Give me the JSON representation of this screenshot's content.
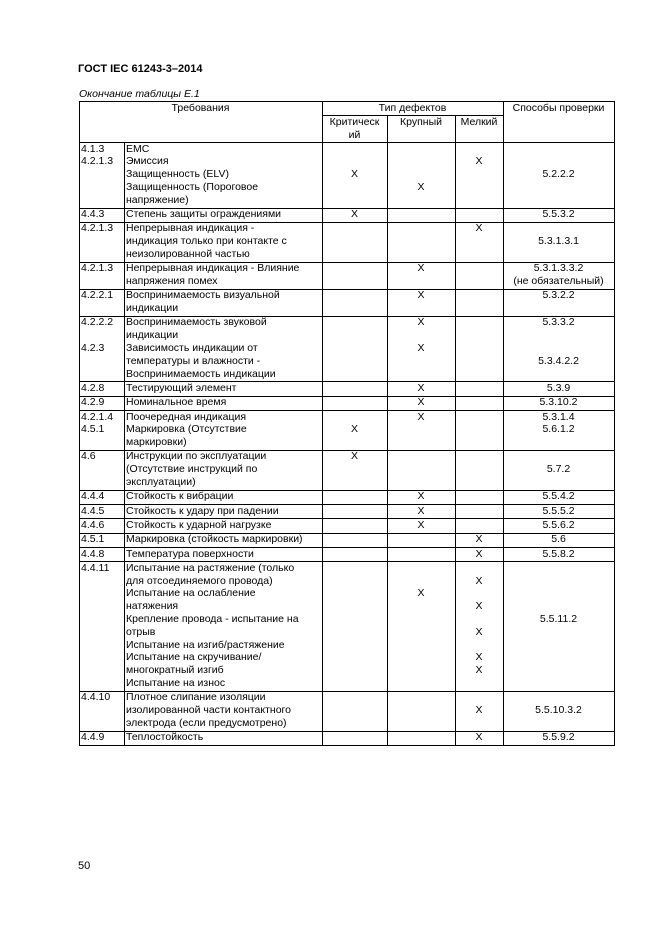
{
  "header": {
    "title": "ГОСТ IEC 61243-3–2014",
    "caption": "Окончание таблицы Е.1"
  },
  "table": {
    "columns": {
      "requirements": "Требования",
      "defect_type": "Тип дефектов",
      "critical": [
        "Критическ",
        "ий"
      ],
      "major": "Крупный",
      "minor": "Мелкий",
      "methods": "Способы проверки"
    },
    "rows": [
      [
        [
          "4.1.3",
          "4.2.1.3"
        ],
        [
          "EMC",
          "Эмиссия",
          "Защищенность (ELV)",
          "Защищенность (Пороговое",
          "напряжение)"
        ],
        [
          null,
          null,
          "X"
        ],
        [
          null,
          null,
          null,
          "X"
        ],
        [
          null,
          "X"
        ],
        [
          null,
          null,
          "5.2.2.2"
        ]
      ],
      [
        [
          "4.4.3"
        ],
        [
          "Степень защиты ограждениями"
        ],
        [
          "X"
        ],
        [],
        [],
        [
          "5.5.3.2"
        ]
      ],
      [
        [
          "4.2.1.3"
        ],
        [
          "Непрерывная индикация -",
          "индикация только при контакте с",
          "неизолированной частью"
        ],
        [],
        [],
        [
          "X"
        ],
        [
          null,
          "5.3.1.3.1"
        ]
      ],
      [
        [
          "4.2.1.3"
        ],
        [
          "Непрерывная индикация - Влияние",
          "напряжения помех"
        ],
        [],
        [
          "X"
        ],
        [],
        [
          "5.3.1.3.3.2",
          "(не обязательный)"
        ]
      ],
      [
        [
          "4.2.2.1"
        ],
        [
          "Воспринимаемость визуальной",
          "индикации"
        ],
        [],
        [
          "X"
        ],
        [],
        [
          "5.3.2.2"
        ]
      ],
      [
        [
          "4.2.2.2",
          null,
          "4.2.3"
        ],
        [
          "Воспринимаемость звуковой",
          "индикации",
          "Зависимость индикации от",
          "температуры и влажности -",
          "Воспринимаемость индикации"
        ],
        [],
        [
          "X",
          null,
          "X"
        ],
        [],
        [
          "5.3.3.2",
          null,
          null,
          "5.3.4.2.2"
        ]
      ],
      [
        [
          "4.2.8"
        ],
        [
          "Тестирующий элемент"
        ],
        [],
        [
          "X"
        ],
        [],
        [
          "5.3.9"
        ]
      ],
      [
        [
          "4.2.9"
        ],
        [
          "Номинальное время"
        ],
        [],
        [
          "X"
        ],
        [],
        [
          "5.3.10.2"
        ]
      ],
      [
        [
          "4.2.1.4",
          "4.5.1"
        ],
        [
          "Поочередная индикация",
          "Маркировка (Отсутствие",
          "маркировки)"
        ],
        [
          null,
          "X"
        ],
        [
          "X"
        ],
        [],
        [
          "5.3.1.4",
          "5.6.1.2"
        ]
      ],
      [
        [
          "4.6"
        ],
        [
          "Инструкции по эксплуатации",
          "(Отсутствие инструкций по",
          "эксплуатации)"
        ],
        [
          "X"
        ],
        [],
        [],
        [
          null,
          "5.7.2"
        ]
      ],
      [
        [
          "4.4.4"
        ],
        [
          "Стойкость к вибрации"
        ],
        [],
        [
          "X"
        ],
        [],
        [
          "5.5.4.2"
        ]
      ],
      [
        [
          "4.4.5"
        ],
        [
          "Стойкость к удару при падении"
        ],
        [],
        [
          "X"
        ],
        [],
        [
          "5.5.5.2"
        ]
      ],
      [
        [
          "4.4.6"
        ],
        [
          "Стойкость к ударной нагрузке"
        ],
        [],
        [
          "X"
        ],
        [],
        [
          "5.5.6.2"
        ]
      ],
      [
        [
          "4.5.1"
        ],
        [
          "Маркировка (стойкость маркировки)"
        ],
        [],
        [],
        [
          "X"
        ],
        [
          "5.6"
        ]
      ],
      [
        [
          "4.4.8"
        ],
        [
          "Температура поверхности"
        ],
        [],
        [],
        [
          "X"
        ],
        [
          "5.5.8.2"
        ]
      ],
      [
        [
          "4.4.11"
        ],
        [
          "Испытание на растяжение (только",
          "для отсоединяемого провода)",
          "Испытание на ослабление",
          "натяжения",
          "Крепление провода - испытание на",
          "отрыв",
          "Испытание на изгиб/растяжение",
          "Испытание на скручивание/",
          "многократный изгиб",
          "Испытание на износ"
        ],
        [],
        [
          null,
          null,
          "X"
        ],
        [
          null,
          "X",
          null,
          "X",
          null,
          "X",
          null,
          "X",
          "X"
        ],
        [
          null,
          null,
          null,
          null,
          "5.5.11.2"
        ]
      ],
      [
        [
          "4.4.10"
        ],
        [
          "Плотное слипание изоляции",
          "изолированной части контактного",
          "электрода (если предусмотрено)"
        ],
        [],
        [],
        [
          null,
          "X"
        ],
        [
          null,
          "5.5.10.3.2"
        ]
      ],
      [
        [
          "4.4.9"
        ],
        [
          "Теплостойкость"
        ],
        [],
        [],
        [
          "X"
        ],
        [
          "5.5.9.2"
        ]
      ]
    ]
  },
  "footer": {
    "page": "50"
  }
}
